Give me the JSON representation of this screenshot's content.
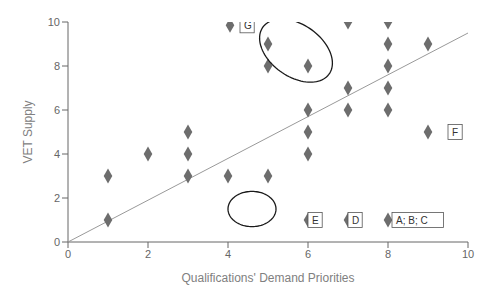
{
  "chart_data": {
    "type": "scatter",
    "x_label": "Qualifications' Demand Priorities",
    "y_label": "VET Supply",
    "xlim": [
      0,
      10
    ],
    "ylim": [
      0,
      10
    ],
    "xticks": [
      0,
      2,
      4,
      6,
      8,
      10
    ],
    "yticks": [
      0,
      2,
      4,
      6,
      8,
      10
    ],
    "grid": false,
    "series": [
      {
        "type": "line",
        "color": "#999999",
        "x": [
          0,
          10
        ],
        "values": [
          0,
          9.5
        ]
      },
      {
        "type": "scatter",
        "color": "#6d6d6d",
        "marker": "diamond",
        "x": [
          1,
          1,
          2,
          3,
          3,
          3,
          4,
          5,
          5,
          5,
          6,
          6,
          6,
          6,
          7,
          7,
          7,
          8,
          8,
          8,
          8,
          8,
          9,
          9,
          6,
          7,
          8,
          4.05
        ],
        "values": [
          1,
          3,
          4,
          3,
          4,
          5,
          3,
          3,
          8,
          9,
          4,
          5,
          6,
          8,
          6,
          7,
          10,
          6,
          7,
          8,
          9,
          10,
          5,
          9,
          1,
          1,
          1,
          9.85
        ]
      }
    ],
    "ellipses": [
      {
        "cx": 5.7,
        "cy": 8.7,
        "width": 1.6,
        "height": 3.0,
        "angle": 20,
        "color": "#1a1a1a"
      },
      {
        "cx": 4.6,
        "cy": 1.5,
        "width": 1.2,
        "height": 1.6,
        "angle": 0,
        "color": "#1a1a1a"
      }
    ],
    "annotations": [
      {
        "text": "G",
        "x": 4.3,
        "y": 9.85
      },
      {
        "text": "F",
        "x": 9.5,
        "y": 5.0
      },
      {
        "text": "E",
        "x": 6.0,
        "y": 1.0
      },
      {
        "text": "D",
        "x": 7.0,
        "y": 1.0
      },
      {
        "text": "A; B; C",
        "x": 8.1,
        "y": 1.0
      }
    ]
  }
}
